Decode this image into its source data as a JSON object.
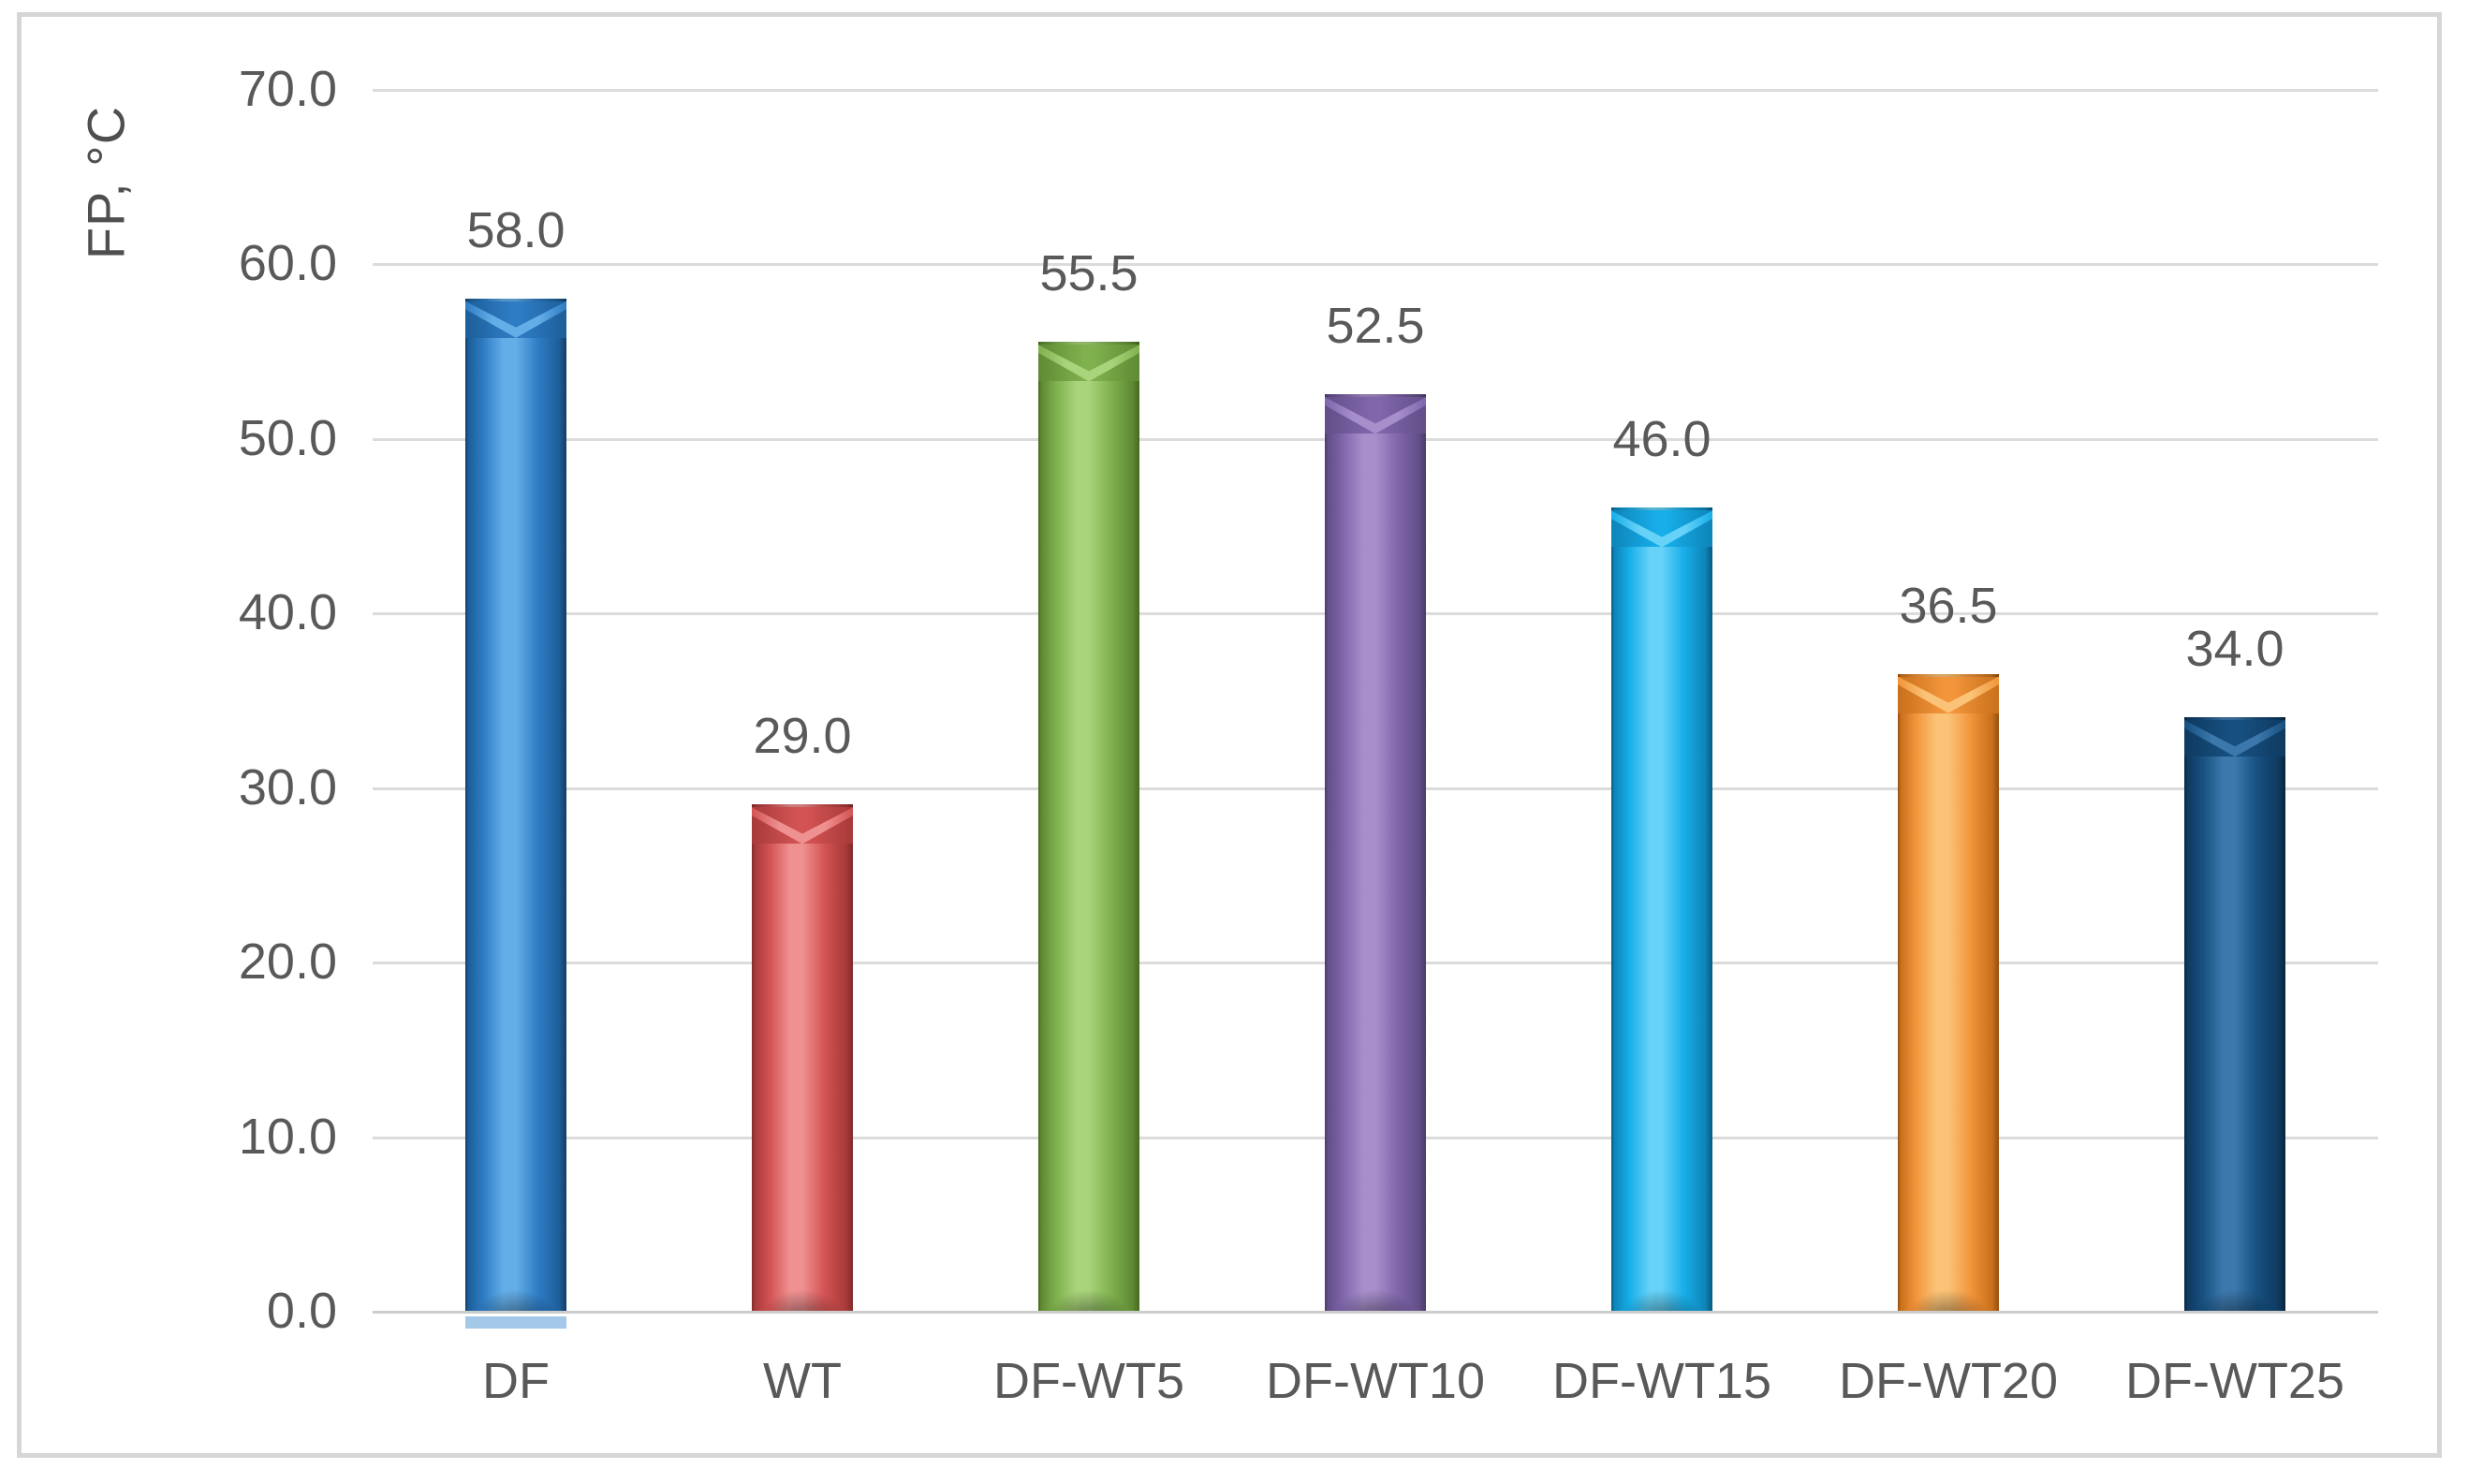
{
  "chart_data": {
    "type": "bar",
    "title": "",
    "xlabel": "",
    "ylabel": "FP, °C",
    "categories": [
      "DF",
      "WT",
      "DF-WT5",
      "DF-WT10",
      "DF-WT15",
      "DF-WT20",
      "DF-WT25"
    ],
    "values": [
      58.0,
      29.0,
      55.5,
      52.5,
      46.0,
      36.5,
      34.0
    ],
    "value_labels": [
      "58.0",
      "29.0",
      "55.5",
      "52.5",
      "46.0",
      "36.5",
      "34.0"
    ],
    "ylim": [
      0,
      70
    ],
    "ytick_labels": [
      "70.0",
      "60.0",
      "50.0",
      "40.0",
      "30.0",
      "20.0",
      "10.0",
      "0.0"
    ],
    "grid": true,
    "legend": false,
    "bar_colors": [
      {
        "name": "blue",
        "base": "#2E7CC4",
        "light": "#64AEE8",
        "dark": "#1D5E99",
        "edge": "#143C63"
      },
      {
        "name": "red",
        "base": "#D35353",
        "light": "#F09191",
        "dark": "#A83A3A",
        "edge": "#7F2B2B"
      },
      {
        "name": "green",
        "base": "#7FB14E",
        "light": "#A9D47B",
        "dark": "#5F8A34",
        "edge": "#46681F"
      },
      {
        "name": "purple",
        "base": "#8066AB",
        "light": "#A78FCB",
        "dark": "#624E88",
        "edge": "#4B3B6B"
      },
      {
        "name": "cyan",
        "base": "#17AEE9",
        "light": "#66D2F8",
        "dark": "#0D84B8",
        "edge": "#07587D"
      },
      {
        "name": "orange",
        "base": "#F2953B",
        "light": "#FBC377",
        "dark": "#C9701C",
        "edge": "#94500F"
      },
      {
        "name": "navy",
        "base": "#175080",
        "light": "#3C78AC",
        "dark": "#0E3A60",
        "edge": "#092540"
      }
    ],
    "style_colors": {
      "grid": "#DBDBDB",
      "axis_text": "#595959",
      "frame_border": "#D6D6D6"
    }
  }
}
